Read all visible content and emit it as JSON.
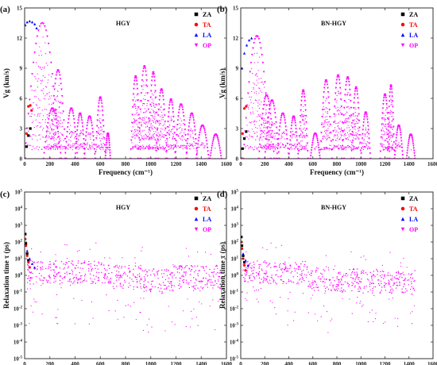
{
  "colors": {
    "ZA": "#000000",
    "TA": "#ff0000",
    "LA": "#0000ff",
    "OP": "#ff00ff"
  },
  "chart_data": [
    {
      "panel_label": "(a)",
      "type": "scatter",
      "title": "HGY",
      "xlabel": "Frequency (cm⁻¹)",
      "ylabel": "Vg (km/s)",
      "xlim": [
        0,
        1600
      ],
      "ylim": [
        0,
        15
      ],
      "xticks": [
        0,
        200,
        400,
        600,
        800,
        1000,
        1200,
        1400,
        1600
      ],
      "yticks": [
        0,
        3,
        6,
        9,
        12,
        15
      ],
      "legend": [
        "ZA",
        "TA",
        "LA",
        "OP"
      ],
      "legend_position": "top-right",
      "series": [
        {
          "name": "ZA",
          "x": [
            0,
            15,
            30,
            45
          ],
          "y": [
            0,
            1.2,
            2.3,
            3.0
          ]
        },
        {
          "name": "TA",
          "x": [
            0,
            15,
            30,
            45,
            55
          ],
          "y": [
            0,
            2.5,
            5.2,
            5.3,
            4.8
          ]
        },
        {
          "name": "LA",
          "x": [
            5,
            20,
            40,
            60,
            80,
            95
          ],
          "y": [
            13.3,
            13.6,
            13.7,
            13.6,
            13.4,
            13.0
          ]
        },
        {
          "name": "OP",
          "arches": [
            [
              0,
              280,
              13.5
            ],
            [
              150,
              290,
              5.0
            ],
            [
              200,
              330,
              8.8
            ],
            [
              320,
              420,
              5.0
            ],
            [
              400,
              480,
              4.5
            ],
            [
              470,
              560,
              4.2
            ],
            [
              560,
              640,
              6.1
            ],
            [
              640,
              680,
              2.5
            ],
            [
              840,
              920,
              8.2
            ],
            [
              900,
              1000,
              9.2
            ],
            [
              980,
              1060,
              8.6
            ],
            [
              1040,
              1130,
              6.9
            ],
            [
              1120,
              1200,
              5.9
            ],
            [
              1190,
              1290,
              5.4
            ],
            [
              1280,
              1370,
              4.5
            ],
            [
              1360,
              1460,
              3.3
            ],
            [
              1470,
              1560,
              2.4
            ]
          ]
        }
      ]
    },
    {
      "panel_label": "(b)",
      "type": "scatter",
      "title": "BN-HGY",
      "xlabel": "Frequency (cm⁻¹)",
      "ylabel": "Vg (km/s)",
      "xlim": [
        0,
        1600
      ],
      "ylim": [
        0,
        15
      ],
      "xticks": [
        0,
        200,
        400,
        600,
        800,
        1000,
        1200,
        1400,
        1600
      ],
      "yticks": [
        0,
        3,
        6,
        9,
        12,
        15
      ],
      "legend": [
        "ZA",
        "TA",
        "LA",
        "OP"
      ],
      "legend_position": "top-right",
      "series": [
        {
          "name": "ZA",
          "x": [
            0,
            15,
            30,
            45
          ],
          "y": [
            0,
            1.0,
            2.0,
            2.7
          ]
        },
        {
          "name": "TA",
          "x": [
            0,
            15,
            30,
            45
          ],
          "y": [
            0,
            2.5,
            5.0,
            5.2
          ]
        },
        {
          "name": "LA",
          "x": [
            10,
            30,
            50,
            70,
            90
          ],
          "y": [
            9.0,
            10.5,
            11.3,
            11.8,
            12.0
          ]
        },
        {
          "name": "OP",
          "arches": [
            [
              20,
              250,
              12.2
            ],
            [
              150,
              280,
              6.3
            ],
            [
              200,
              320,
              5.8
            ],
            [
              300,
              400,
              4.5
            ],
            [
              400,
              480,
              4.2
            ],
            [
              480,
              560,
              6.8
            ],
            [
              580,
              660,
              2.5
            ],
            [
              660,
              760,
              7.8
            ],
            [
              760,
              860,
              8.3
            ],
            [
              840,
              940,
              8.1
            ],
            [
              920,
              1000,
              7.1
            ],
            [
              1000,
              1080,
              4.6
            ],
            [
              1160,
              1240,
              6.4
            ],
            [
              1220,
              1280,
              7.3
            ],
            [
              1280,
              1350,
              3.3
            ],
            [
              1380,
              1450,
              2.4
            ]
          ]
        }
      ]
    },
    {
      "panel_label": "(c)",
      "type": "scatter",
      "title": "HGY",
      "xlabel": "Frequency (cm⁻¹)",
      "ylabel": "Relaxation time τ (ps)",
      "xlim": [
        0,
        1600
      ],
      "ylim": [
        1e-05,
        100000.0
      ],
      "yscale": "log",
      "xticks": [
        0,
        200,
        400,
        600,
        800,
        1000,
        1200,
        1400,
        1600
      ],
      "ytick_exponents": [
        -5,
        -4,
        -3,
        -2,
        -1,
        0,
        1,
        2,
        3,
        4,
        5
      ],
      "legend": [
        "ZA",
        "TA",
        "LA",
        "OP"
      ],
      "legend_position": "top-right",
      "series": [
        {
          "name": "ZA",
          "x": [
            5,
            10,
            20,
            30
          ],
          "y": [
            300,
            80,
            20,
            8
          ]
        },
        {
          "name": "TA",
          "x": [
            5,
            10,
            20,
            30,
            40
          ],
          "y": [
            150,
            60,
            15,
            6,
            3
          ]
        },
        {
          "name": "LA",
          "x": [
            20,
            40,
            60,
            80
          ],
          "y": [
            30,
            10,
            5,
            3
          ]
        },
        {
          "name": "OP",
          "bands": [
            [
              20,
              680,
              1.5
            ],
            [
              680,
              940,
              0.8
            ],
            [
              940,
              1180,
              0.5
            ],
            [
              1180,
              1580,
              0.8
            ]
          ]
        }
      ]
    },
    {
      "panel_label": "(d)",
      "type": "scatter",
      "title": "BN-HGY",
      "xlabel": "Frequency (cm⁻¹)",
      "ylabel": "Relaxation time τ (ps)",
      "xlim": [
        0,
        1600
      ],
      "ylim": [
        1e-05,
        100000.0
      ],
      "yscale": "log",
      "xticks": [
        0,
        200,
        400,
        600,
        800,
        1000,
        1200,
        1400,
        1600
      ],
      "ytick_exponents": [
        -5,
        -4,
        -3,
        -2,
        -1,
        0,
        1,
        2,
        3,
        4,
        5
      ],
      "legend": [
        "ZA",
        "TA",
        "LA",
        "OP"
      ],
      "legend_position": "top-right",
      "series": [
        {
          "name": "ZA",
          "x": [
            5,
            10,
            20,
            30
          ],
          "y": [
            200,
            60,
            15,
            6
          ]
        },
        {
          "name": "TA",
          "x": [
            5,
            10,
            20,
            30,
            40
          ],
          "y": [
            100,
            40,
            10,
            4,
            2
          ]
        },
        {
          "name": "LA",
          "x": [
            20,
            40,
            60
          ],
          "y": [
            20,
            8,
            4
          ]
        },
        {
          "name": "OP",
          "bands": [
            [
              20,
              560,
              1.5
            ],
            [
              560,
              660,
              0.6
            ],
            [
              660,
              1000,
              0.5
            ],
            [
              1000,
              1450,
              0.4
            ]
          ]
        }
      ]
    }
  ]
}
